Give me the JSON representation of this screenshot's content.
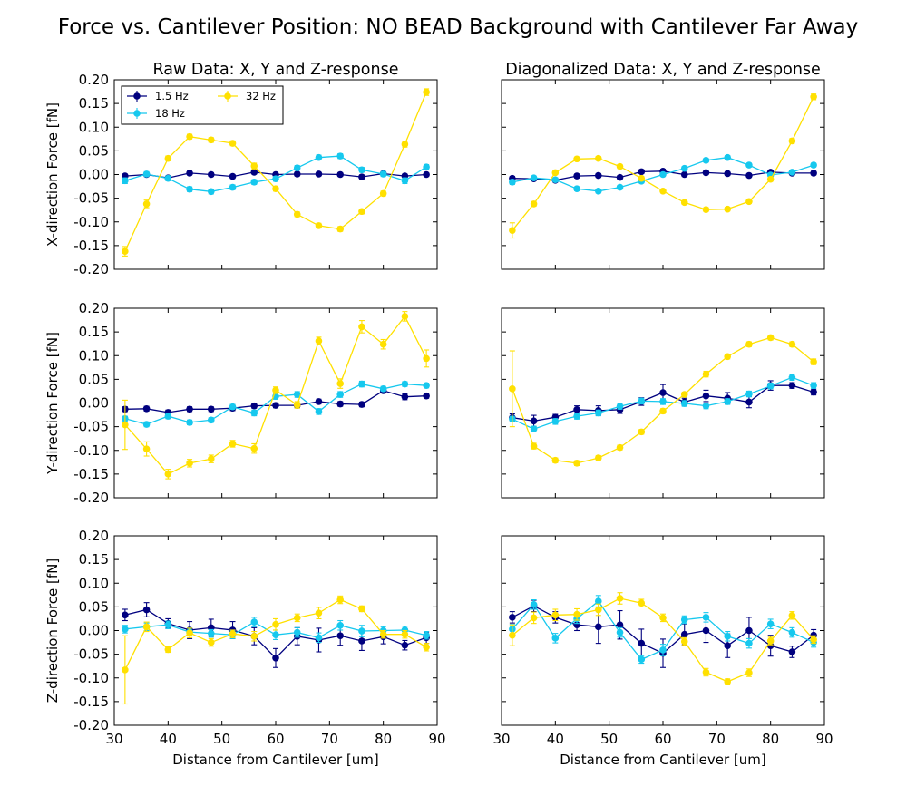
{
  "title": "Force vs. Cantilever Position: NO BEAD Background with Cantilever Far Away",
  "column_titles": [
    "Raw Data: X, Y and Z-response",
    "Diagonalized Data: X, Y and Z-response"
  ],
  "row_ylabels": [
    "X-direction Force [fN]",
    "Y-direction Force [fN]",
    "Z-direction Force [fN]"
  ],
  "xlabel": "Distance from Cantilever [um]",
  "legend": {
    "placement": "upper-left of top-left panel",
    "entries": [
      "1.5 Hz",
      "18 Hz",
      "32 Hz"
    ]
  },
  "series_colors": [
    "#00007f",
    "#16c8ee",
    "#ffe000"
  ],
  "chart_data": [
    {
      "panel": "raw-x",
      "type": "line",
      "title": "Raw Data: X, Y and Z-response",
      "xlabel": "",
      "ylabel": "X-direction Force [fN]",
      "xlim": [
        30,
        90
      ],
      "ylim": [
        -0.2,
        0.2
      ],
      "x": [
        32,
        36,
        40,
        44,
        48,
        52,
        56,
        60,
        64,
        68,
        72,
        76,
        80,
        84,
        88
      ],
      "series": [
        {
          "name": "1.5 Hz",
          "color": "#00007f",
          "values": [
            -0.003,
            0.0,
            -0.007,
            0.003,
            0.0,
            -0.004,
            0.005,
            0.0,
            0.001,
            0.001,
            0.0,
            -0.005,
            0.002,
            -0.003,
            0.0
          ],
          "err": [
            0.004,
            0.004,
            0.004,
            0.004,
            0.004,
            0.004,
            0.004,
            0.004,
            0.004,
            0.004,
            0.004,
            0.004,
            0.004,
            0.004,
            0.004
          ]
        },
        {
          "name": "18 Hz",
          "color": "#16c8ee",
          "values": [
            -0.013,
            0.001,
            -0.008,
            -0.031,
            -0.036,
            -0.027,
            -0.016,
            -0.009,
            0.014,
            0.036,
            0.039,
            0.01,
            0.001,
            -0.013,
            0.016
          ],
          "err": [
            0.006,
            0.005,
            0.005,
            0.005,
            0.005,
            0.005,
            0.005,
            0.005,
            0.005,
            0.005,
            0.005,
            0.005,
            0.005,
            0.006,
            0.005
          ]
        },
        {
          "name": "32 Hz",
          "color": "#ffe000",
          "values": [
            -0.162,
            -0.062,
            0.034,
            0.08,
            0.073,
            0.066,
            0.018,
            -0.03,
            -0.084,
            -0.108,
            -0.115,
            -0.078,
            -0.04,
            0.064,
            0.174
          ],
          "err": [
            0.01,
            0.008,
            0.005,
            0.005,
            0.005,
            0.005,
            0.006,
            0.005,
            0.005,
            0.005,
            0.005,
            0.005,
            0.005,
            0.006,
            0.007
          ]
        }
      ]
    },
    {
      "panel": "diag-x",
      "type": "line",
      "title": "Diagonalized Data: X, Y and Z-response",
      "xlabel": "",
      "ylabel": "",
      "xlim": [
        30,
        90
      ],
      "ylim": [
        -0.2,
        0.2
      ],
      "x": [
        32,
        36,
        40,
        44,
        48,
        52,
        56,
        60,
        64,
        68,
        72,
        76,
        80,
        84,
        88
      ],
      "series": [
        {
          "name": "1.5 Hz",
          "color": "#00007f",
          "values": [
            -0.008,
            -0.009,
            -0.012,
            -0.003,
            -0.002,
            -0.006,
            0.006,
            0.007,
            0.0,
            0.004,
            0.002,
            -0.002,
            0.005,
            0.003,
            0.003
          ],
          "err": [
            0.004,
            0.004,
            0.004,
            0.004,
            0.004,
            0.004,
            0.004,
            0.004,
            0.004,
            0.004,
            0.004,
            0.004,
            0.004,
            0.004,
            0.004
          ]
        },
        {
          "name": "18 Hz",
          "color": "#16c8ee",
          "values": [
            -0.016,
            -0.007,
            -0.011,
            -0.03,
            -0.035,
            -0.027,
            -0.014,
            0.0,
            0.013,
            0.03,
            0.036,
            0.02,
            -0.001,
            0.005,
            0.02
          ],
          "err": [
            0.005,
            0.004,
            0.004,
            0.004,
            0.004,
            0.004,
            0.004,
            0.004,
            0.004,
            0.004,
            0.004,
            0.004,
            0.004,
            0.004,
            0.004
          ]
        },
        {
          "name": "32 Hz",
          "color": "#ffe000",
          "values": [
            -0.118,
            -0.062,
            0.004,
            0.033,
            0.034,
            0.017,
            -0.008,
            -0.035,
            -0.059,
            -0.074,
            -0.073,
            -0.057,
            -0.01,
            0.071,
            0.164
          ],
          "err": [
            0.016,
            0.005,
            0.004,
            0.004,
            0.004,
            0.004,
            0.004,
            0.004,
            0.004,
            0.004,
            0.004,
            0.004,
            0.004,
            0.005,
            0.006
          ]
        }
      ]
    },
    {
      "panel": "raw-y",
      "type": "line",
      "title": "",
      "xlabel": "",
      "ylabel": "Y-direction Force [fN]",
      "xlim": [
        30,
        90
      ],
      "ylim": [
        -0.2,
        0.2
      ],
      "x": [
        32,
        36,
        40,
        44,
        48,
        52,
        56,
        60,
        64,
        68,
        72,
        76,
        80,
        84,
        88
      ],
      "series": [
        {
          "name": "1.5 Hz",
          "color": "#00007f",
          "values": [
            -0.013,
            -0.012,
            -0.02,
            -0.013,
            -0.013,
            -0.011,
            -0.006,
            -0.005,
            -0.005,
            0.003,
            -0.002,
            -0.003,
            0.026,
            0.013,
            0.015
          ],
          "err": [
            0.005,
            0.005,
            0.005,
            0.005,
            0.005,
            0.005,
            0.005,
            0.005,
            0.005,
            0.005,
            0.005,
            0.005,
            0.005,
            0.006,
            0.005
          ]
        },
        {
          "name": "18 Hz",
          "color": "#16c8ee",
          "values": [
            -0.033,
            -0.045,
            -0.028,
            -0.041,
            -0.036,
            -0.008,
            -0.021,
            0.014,
            0.018,
            -0.018,
            0.018,
            0.04,
            0.03,
            0.04,
            0.037
          ],
          "err": [
            0.005,
            0.005,
            0.005,
            0.005,
            0.005,
            0.005,
            0.006,
            0.006,
            0.006,
            0.006,
            0.006,
            0.006,
            0.005,
            0.005,
            0.005
          ]
        },
        {
          "name": "32 Hz",
          "color": "#ffe000",
          "values": [
            -0.046,
            -0.097,
            -0.15,
            -0.127,
            -0.118,
            -0.086,
            -0.096,
            0.027,
            -0.004,
            0.131,
            0.041,
            0.161,
            0.124,
            0.183,
            0.094
          ],
          "err": [
            0.052,
            0.015,
            0.01,
            0.008,
            0.008,
            0.007,
            0.01,
            0.007,
            0.007,
            0.008,
            0.01,
            0.013,
            0.01,
            0.01,
            0.018
          ]
        }
      ]
    },
    {
      "panel": "diag-y",
      "type": "line",
      "title": "",
      "xlabel": "",
      "ylabel": "",
      "xlim": [
        30,
        90
      ],
      "ylim": [
        -0.2,
        0.2
      ],
      "x": [
        32,
        36,
        40,
        44,
        48,
        52,
        56,
        60,
        64,
        68,
        72,
        76,
        80,
        84,
        88
      ],
      "series": [
        {
          "name": "1.5 Hz",
          "color": "#00007f",
          "values": [
            -0.031,
            -0.038,
            -0.03,
            -0.014,
            -0.016,
            -0.014,
            0.003,
            0.022,
            0.002,
            0.015,
            0.01,
            0.002,
            0.037,
            0.037,
            0.023
          ],
          "err": [
            0.008,
            0.012,
            0.006,
            0.008,
            0.01,
            0.008,
            0.008,
            0.017,
            0.008,
            0.012,
            0.012,
            0.012,
            0.01,
            0.006,
            0.006
          ]
        },
        {
          "name": "18 Hz",
          "color": "#16c8ee",
          "values": [
            -0.034,
            -0.055,
            -0.039,
            -0.028,
            -0.021,
            -0.007,
            0.004,
            0.003,
            -0.001,
            -0.006,
            0.003,
            0.019,
            0.036,
            0.054,
            0.037
          ],
          "err": [
            0.006,
            0.006,
            0.006,
            0.006,
            0.006,
            0.006,
            0.006,
            0.006,
            0.006,
            0.006,
            0.006,
            0.006,
            0.006,
            0.006,
            0.006
          ]
        },
        {
          "name": "32 Hz",
          "color": "#ffe000",
          "values": [
            0.03,
            -0.091,
            -0.121,
            -0.127,
            -0.116,
            -0.094,
            -0.061,
            -0.017,
            0.018,
            0.061,
            0.098,
            0.124,
            0.138,
            0.124,
            0.087
          ],
          "err": [
            0.08,
            0.006,
            0.005,
            0.005,
            0.005,
            0.005,
            0.005,
            0.005,
            0.005,
            0.006,
            0.005,
            0.005,
            0.005,
            0.005,
            0.006
          ]
        }
      ]
    },
    {
      "panel": "raw-z",
      "type": "line",
      "title": "",
      "xlabel": "Distance from Cantilever [um]",
      "ylabel": "Z-direction Force [fN]",
      "xlim": [
        30,
        90
      ],
      "ylim": [
        -0.2,
        0.2
      ],
      "x": [
        32,
        36,
        40,
        44,
        48,
        52,
        56,
        60,
        64,
        68,
        72,
        76,
        80,
        84,
        88
      ],
      "series": [
        {
          "name": "1.5 Hz",
          "color": "#00007f",
          "values": [
            0.033,
            0.044,
            0.015,
            0.001,
            0.006,
            0.001,
            -0.012,
            -0.058,
            -0.012,
            -0.02,
            -0.011,
            -0.022,
            -0.013,
            -0.031,
            -0.015
          ],
          "err": [
            0.012,
            0.015,
            0.01,
            0.018,
            0.018,
            0.018,
            0.018,
            0.02,
            0.018,
            0.025,
            0.02,
            0.02,
            0.015,
            0.01,
            0.012
          ]
        },
        {
          "name": "18 Hz",
          "color": "#16c8ee",
          "values": [
            0.003,
            0.008,
            0.012,
            -0.003,
            -0.006,
            -0.009,
            0.018,
            -0.009,
            -0.004,
            -0.015,
            0.011,
            -0.001,
            0.0,
            0.001,
            -0.01
          ],
          "err": [
            0.008,
            0.008,
            0.008,
            0.008,
            0.008,
            0.008,
            0.01,
            0.01,
            0.01,
            0.01,
            0.01,
            0.012,
            0.008,
            0.008,
            0.008
          ]
        },
        {
          "name": "32 Hz",
          "color": "#ffe000",
          "values": [
            -0.083,
            0.008,
            -0.04,
            -0.005,
            -0.025,
            -0.007,
            -0.012,
            0.013,
            0.027,
            0.037,
            0.065,
            0.046,
            -0.008,
            -0.008,
            -0.035
          ],
          "err": [
            0.072,
            0.01,
            0.006,
            0.01,
            0.008,
            0.008,
            0.01,
            0.012,
            0.008,
            0.012,
            0.008,
            0.006,
            0.008,
            0.008,
            0.008
          ]
        }
      ]
    },
    {
      "panel": "diag-z",
      "type": "line",
      "title": "",
      "xlabel": "Distance from Cantilever [um]",
      "ylabel": "",
      "xlim": [
        30,
        90
      ],
      "ylim": [
        -0.2,
        0.2
      ],
      "x": [
        32,
        36,
        40,
        44,
        48,
        52,
        56,
        60,
        64,
        68,
        72,
        76,
        80,
        84,
        88
      ],
      "series": [
        {
          "name": "1.5 Hz",
          "color": "#00007f",
          "values": [
            0.028,
            0.052,
            0.028,
            0.012,
            0.008,
            0.012,
            -0.027,
            -0.048,
            -0.008,
            0.0,
            -0.032,
            0.0,
            -0.032,
            -0.045,
            -0.01
          ],
          "err": [
            0.012,
            0.012,
            0.012,
            0.012,
            0.035,
            0.03,
            0.03,
            0.03,
            0.022,
            0.025,
            0.025,
            0.028,
            0.022,
            0.012,
            0.012
          ]
        },
        {
          "name": "18 Hz",
          "color": "#16c8ee",
          "values": [
            0.003,
            0.055,
            -0.016,
            0.025,
            0.062,
            -0.004,
            -0.061,
            -0.041,
            0.023,
            0.028,
            -0.012,
            -0.027,
            0.014,
            -0.004,
            -0.025
          ],
          "err": [
            0.01,
            0.01,
            0.01,
            0.01,
            0.012,
            0.01,
            0.008,
            0.012,
            0.008,
            0.01,
            0.01,
            0.01,
            0.01,
            0.01,
            0.01
          ]
        },
        {
          "name": "32 Hz",
          "color": "#ffe000",
          "values": [
            -0.01,
            0.027,
            0.033,
            0.034,
            0.044,
            0.068,
            0.058,
            0.027,
            -0.023,
            -0.088,
            -0.108,
            -0.089,
            -0.022,
            0.032,
            -0.019
          ],
          "err": [
            0.022,
            0.012,
            0.012,
            0.012,
            0.012,
            0.012,
            0.008,
            0.008,
            0.008,
            0.008,
            0.006,
            0.008,
            0.008,
            0.008,
            0.008
          ]
        }
      ]
    }
  ]
}
